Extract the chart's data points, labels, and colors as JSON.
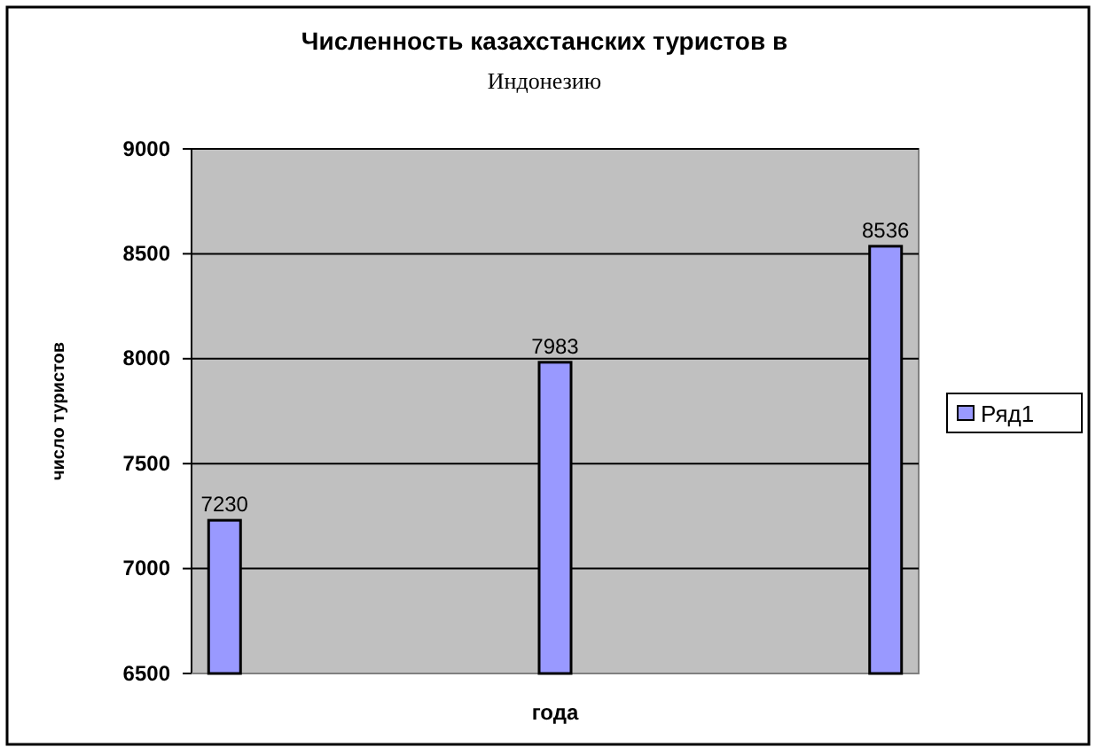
{
  "chart_data": {
    "type": "bar",
    "title": "Численность казахстанских туристов в Индонезию",
    "xlabel": "года",
    "ylabel": "число туристов",
    "categories": [
      null,
      null,
      null
    ],
    "series": [
      {
        "name": "Ряд1",
        "color": "#9999ff",
        "values": [
          7230,
          7983,
          8536
        ]
      }
    ],
    "ylim": [
      6500,
      9000
    ],
    "yticks": [
      6500,
      7000,
      7500,
      8000,
      8500,
      9000
    ],
    "grid": "y",
    "legend": "right",
    "data_labels": true
  }
}
